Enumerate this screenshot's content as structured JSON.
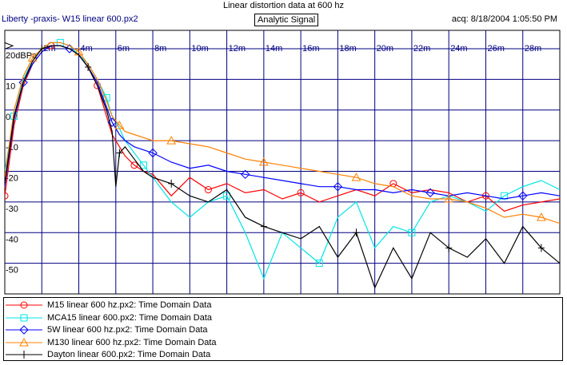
{
  "header": {
    "title": "Linear distortion data at 600 hz",
    "source": "Liberty -praxis-  W15 linear 600.px2",
    "badge": "Analytic Signal",
    "acq": "acq: 8/18/2004 1:05:50 PM"
  },
  "chart_data": {
    "type": "line",
    "title": "Linear distortion data at 600 hz",
    "xlabel": "",
    "ylabel": "",
    "xunit": "s",
    "xlim": [
      0,
      0.03
    ],
    "ylim": [
      -60,
      26
    ],
    "x_ticks": [
      "2m",
      "4m",
      "6m",
      "8m",
      "10m",
      "12m",
      "14m",
      "16m",
      "18m",
      "20m",
      "22m",
      "24m",
      "26m",
      "28m"
    ],
    "y_ticks": [
      "20dBPa",
      "10",
      "0",
      "-10",
      "-20",
      "-30",
      "-40",
      "-50"
    ],
    "y_tick_values": [
      20,
      10,
      0,
      -10,
      -20,
      -30,
      -40,
      -50
    ],
    "grid": true,
    "legend_position": "bottom",
    "series": [
      {
        "name": "M15 linear 600 hz.px2:  Time Domain Data",
        "color": "#ff0000",
        "marker": "circle",
        "x": [
          0.0,
          0.0005,
          0.001,
          0.0015,
          0.002,
          0.0025,
          0.003,
          0.0035,
          0.004,
          0.0045,
          0.005,
          0.0055,
          0.0058,
          0.0062,
          0.0065,
          0.007,
          0.0075,
          0.008,
          0.009,
          0.01,
          0.011,
          0.012,
          0.013,
          0.014,
          0.015,
          0.016,
          0.017,
          0.018,
          0.019,
          0.02,
          0.021,
          0.022,
          0.023,
          0.024,
          0.025,
          0.026,
          0.027,
          0.028,
          0.029,
          0.03
        ],
        "y": [
          -28,
          -5,
          8,
          15,
          19,
          21,
          21,
          20,
          18,
          14,
          8,
          -2,
          -8,
          -12,
          -15,
          -18,
          -20,
          -21,
          -28,
          -22,
          -26,
          -24,
          -27,
          -26,
          -29,
          -27,
          -30,
          -28,
          -26,
          -28,
          -24,
          -27,
          -26,
          -27,
          -30,
          -28,
          -33,
          -31,
          -30,
          -29
        ]
      },
      {
        "name": "MCA15 linear 600.px2:  Time Domain Data",
        "color": "#00e5e5",
        "marker": "square",
        "x": [
          0.0,
          0.0005,
          0.001,
          0.0015,
          0.002,
          0.0025,
          0.003,
          0.0035,
          0.004,
          0.0045,
          0.005,
          0.0055,
          0.0058,
          0.0062,
          0.0065,
          0.007,
          0.0075,
          0.008,
          0.009,
          0.01,
          0.011,
          0.012,
          0.013,
          0.014,
          0.015,
          0.016,
          0.017,
          0.018,
          0.019,
          0.02,
          0.021,
          0.022,
          0.023,
          0.024,
          0.025,
          0.026,
          0.027,
          0.028,
          0.029,
          0.03
        ],
        "y": [
          -20,
          -2,
          10,
          16,
          20,
          22,
          22,
          21,
          18,
          15,
          10,
          4,
          -2,
          -6,
          -10,
          -14,
          -18,
          -22,
          -30,
          -35,
          -30,
          -28,
          -40,
          -55,
          -40,
          -45,
          -50,
          -35,
          -30,
          -45,
          -38,
          -40,
          -30,
          -28,
          -30,
          -33,
          -28,
          -25,
          -23,
          -26
        ]
      },
      {
        "name": "5W linear 600 hz.px2:  Time Domain Data",
        "color": "#0000ff",
        "marker": "diamond",
        "x": [
          0.0,
          0.0005,
          0.001,
          0.0015,
          0.002,
          0.0025,
          0.003,
          0.0035,
          0.004,
          0.0045,
          0.005,
          0.0055,
          0.0058,
          0.0062,
          0.0065,
          0.007,
          0.0075,
          0.008,
          0.009,
          0.01,
          0.011,
          0.012,
          0.013,
          0.014,
          0.015,
          0.016,
          0.017,
          0.018,
          0.019,
          0.02,
          0.021,
          0.022,
          0.023,
          0.024,
          0.025,
          0.026,
          0.027,
          0.028,
          0.029,
          0.03
        ],
        "y": [
          -25,
          -3,
          9,
          15,
          19,
          21,
          21,
          20,
          18,
          14,
          9,
          1,
          -4,
          -8,
          -10,
          -12,
          -13,
          -14,
          -17,
          -19,
          -18,
          -20,
          -21,
          -22,
          -23,
          -24,
          -25,
          -25,
          -26,
          -26,
          -27,
          -26,
          -27,
          -28,
          -27,
          -28,
          -29,
          -28,
          -27,
          -28
        ]
      },
      {
        "name": "M130 linear 600 hz.px2:  Time Domain Data",
        "color": "#ff8000",
        "marker": "triangle",
        "x": [
          0.0,
          0.0005,
          0.001,
          0.0015,
          0.002,
          0.0025,
          0.003,
          0.0035,
          0.004,
          0.0045,
          0.005,
          0.0055,
          0.0058,
          0.0062,
          0.0065,
          0.007,
          0.0075,
          0.008,
          0.009,
          0.01,
          0.011,
          0.012,
          0.013,
          0.014,
          0.015,
          0.016,
          0.017,
          0.018,
          0.019,
          0.02,
          0.021,
          0.022,
          0.023,
          0.024,
          0.025,
          0.026,
          0.027,
          0.028,
          0.029,
          0.03
        ],
        "y": [
          -22,
          0,
          11,
          17,
          20,
          22,
          22,
          21,
          19,
          15,
          10,
          3,
          -2,
          -5,
          -7,
          -8,
          -9,
          -10,
          -10,
          -11,
          -12,
          -14,
          -16,
          -17,
          -18,
          -19,
          -20,
          -21,
          -22,
          -24,
          -25,
          -28,
          -29,
          -29,
          -30,
          -32,
          -35,
          -34,
          -35,
          -37
        ]
      },
      {
        "name": "Dayton linear 600.px2:  Time Domain Data",
        "color": "#000000",
        "marker": "cross",
        "x": [
          0.0,
          0.0005,
          0.001,
          0.0015,
          0.002,
          0.0025,
          0.003,
          0.0035,
          0.004,
          0.0045,
          0.005,
          0.0055,
          0.0058,
          0.006,
          0.0062,
          0.0065,
          0.007,
          0.0075,
          0.008,
          0.009,
          0.01,
          0.011,
          0.012,
          0.013,
          0.014,
          0.015,
          0.016,
          0.017,
          0.018,
          0.019,
          0.02,
          0.021,
          0.022,
          0.023,
          0.024,
          0.025,
          0.026,
          0.027,
          0.028,
          0.029,
          0.03
        ],
        "y": [
          -24,
          -2,
          9,
          16,
          20,
          21,
          21,
          20,
          18,
          14,
          8,
          0,
          -7,
          -25,
          -14,
          -12,
          -16,
          -20,
          -22,
          -24,
          -28,
          -30,
          -26,
          -35,
          -38,
          -40,
          -42,
          -38,
          -48,
          -40,
          -58,
          -45,
          -55,
          -40,
          -45,
          -48,
          -42,
          -50,
          -38,
          -45,
          -50
        ]
      }
    ]
  }
}
